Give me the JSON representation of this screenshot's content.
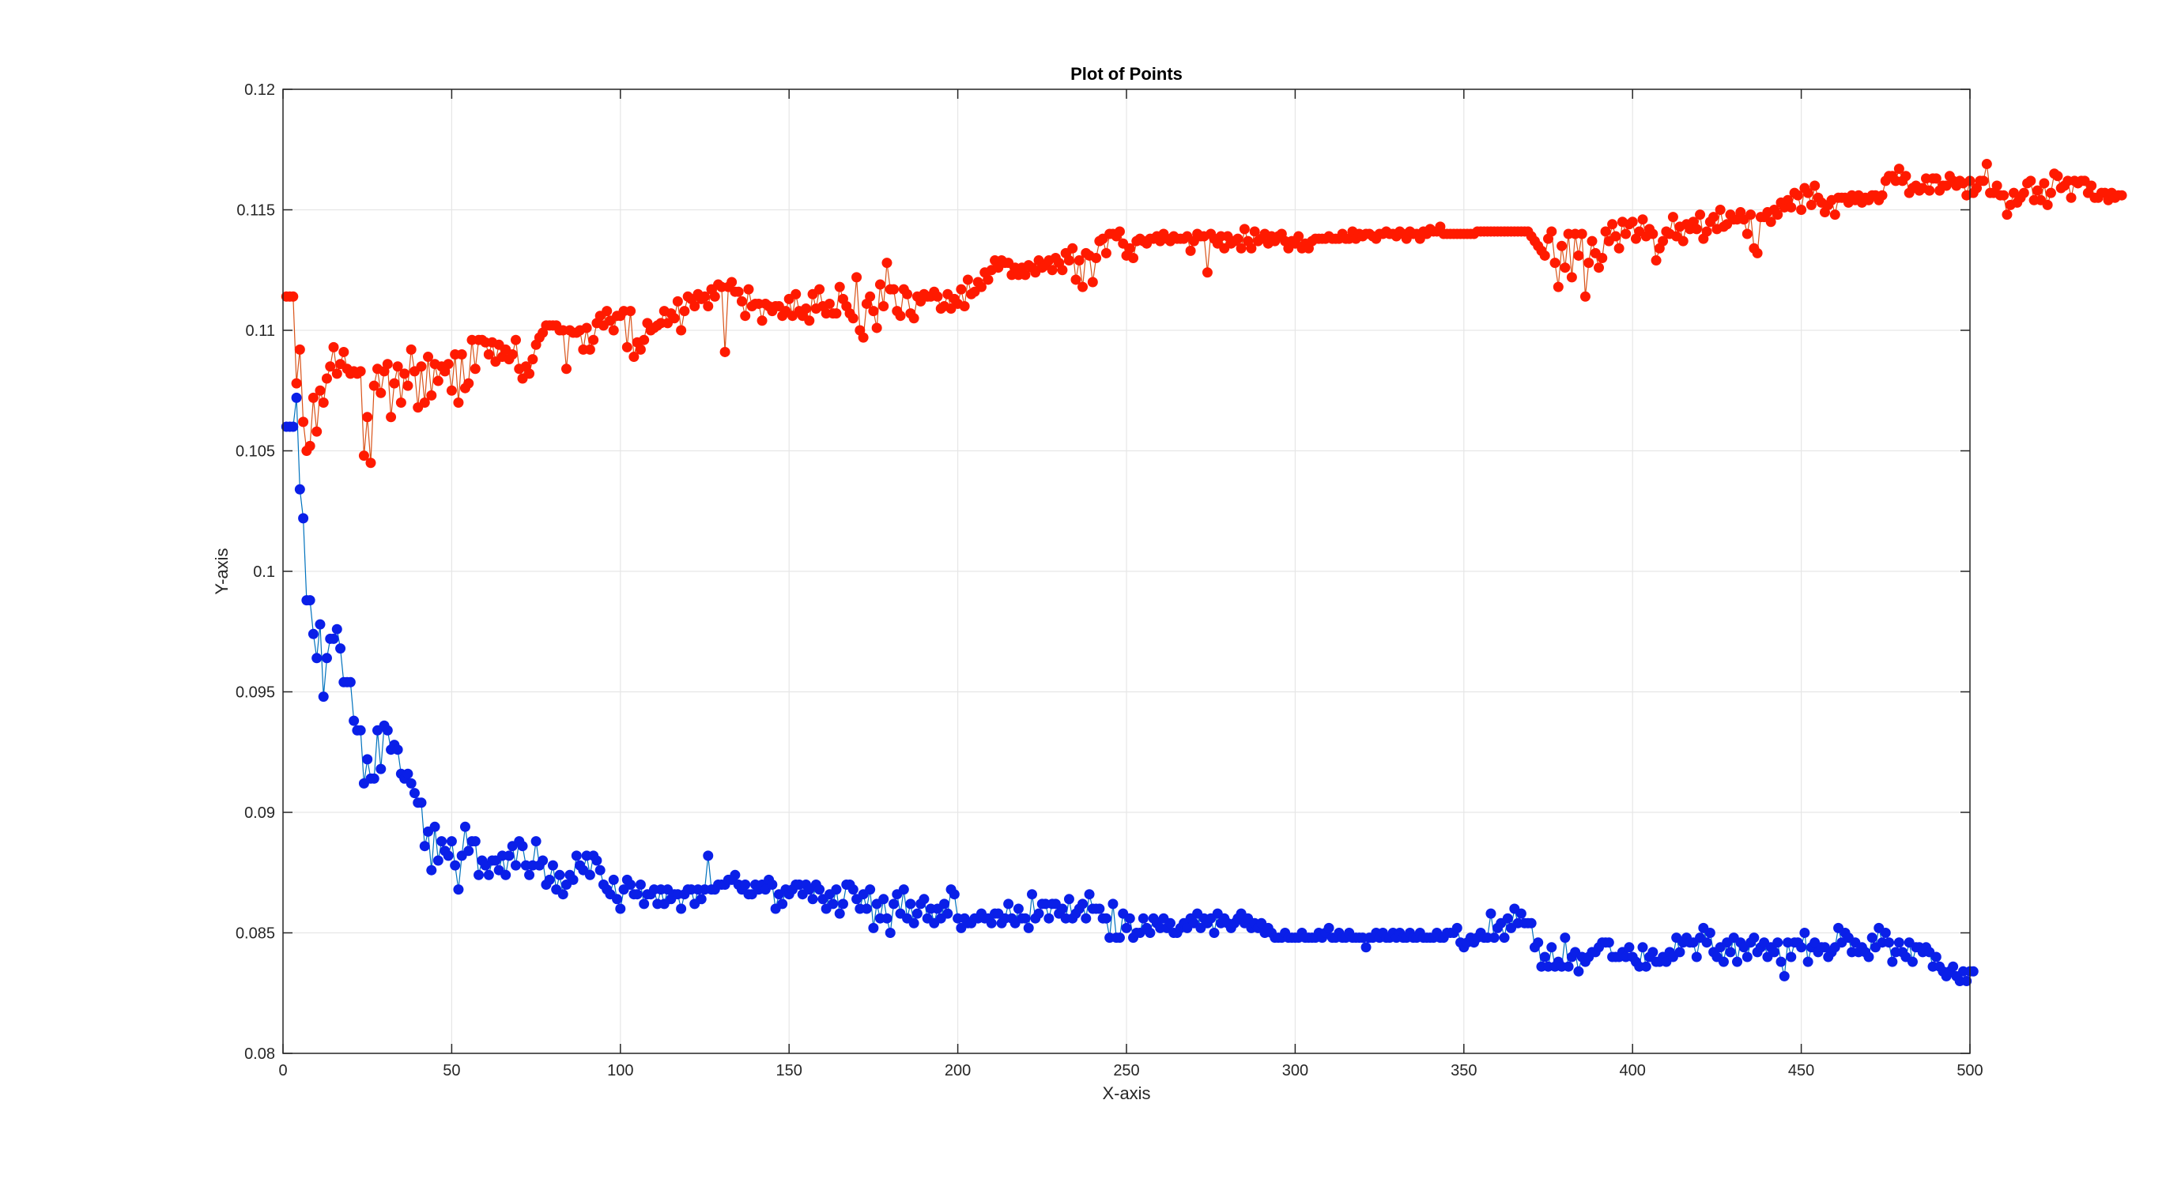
{
  "chart_data": {
    "type": "line",
    "title": "Plot of Points",
    "xlabel": "X-axis",
    "ylabel": "Y-axis",
    "xlim": [
      0,
      500
    ],
    "ylim": [
      0.08,
      0.12
    ],
    "x_ticks": [
      0,
      50,
      100,
      150,
      200,
      250,
      300,
      350,
      400,
      450,
      500
    ],
    "x_tick_labels": [
      "0",
      "50",
      "100",
      "150",
      "200",
      "250",
      "300",
      "350",
      "400",
      "450",
      "500"
    ],
    "y_ticks": [
      0.08,
      0.085,
      0.09,
      0.095,
      0.1,
      0.105,
      0.11,
      0.115,
      0.12
    ],
    "y_tick_labels": [
      "0.08",
      "0.085",
      "0.09",
      "0.095",
      "0.1",
      "0.105",
      "0.11",
      "0.115",
      "0.12"
    ],
    "grid": true,
    "marker": "filled-circle",
    "series": [
      {
        "color": "#ff1a00",
        "line_color": "#d95319",
        "x_start": 1,
        "x_step": 1,
        "values": [
          0.1114,
          0.1114,
          0.1114,
          0.1078,
          0.1092,
          0.1062,
          0.105,
          0.1052,
          0.1072,
          0.1058,
          0.1075,
          0.107,
          0.108,
          0.1085,
          0.1093,
          0.1082,
          0.1086,
          0.1091,
          0.1084,
          0.1082,
          0.1083,
          0.1082,
          0.1083,
          0.1048,
          0.1064,
          0.1045,
          0.1077,
          0.1084,
          0.1074,
          0.1083,
          0.1086,
          0.1064,
          0.1078,
          0.1085,
          0.107,
          0.1082,
          0.1077,
          0.1092,
          0.1083,
          0.1068,
          0.1085,
          0.107,
          0.1089,
          0.1073,
          0.1086,
          0.1079,
          0.1085,
          0.1083,
          0.1086,
          0.1075,
          0.109,
          0.107,
          0.109,
          0.1076,
          0.1078,
          0.1096,
          0.1084,
          0.1096,
          0.1096,
          0.1095,
          0.109,
          0.1095,
          0.1087,
          0.1094,
          0.1089,
          0.1092,
          0.1088,
          0.109,
          0.1096,
          0.1084,
          0.108,
          0.1085,
          0.1082,
          0.1088,
          0.1094,
          0.1097,
          0.1099,
          0.1102,
          0.1102,
          0.1102,
          0.1102,
          0.11,
          0.11,
          0.1084,
          0.11,
          0.1099,
          0.1099,
          0.11,
          0.1092,
          0.1101,
          0.1092,
          0.1096,
          0.1103,
          0.1106,
          0.1102,
          0.1108,
          0.1104,
          0.11,
          0.1106,
          0.1106,
          0.1108,
          0.1093,
          0.1108,
          0.1089,
          0.1095,
          0.1092,
          0.1096,
          0.1103,
          0.11,
          0.1101,
          0.1102,
          0.1103,
          0.1108,
          0.1103,
          0.1107,
          0.1105,
          0.1112,
          0.11,
          0.1108,
          0.1114,
          0.1113,
          0.111,
          0.1115,
          0.1113,
          0.1114,
          0.111,
          0.1117,
          0.1114,
          0.1119,
          0.1118,
          0.1091,
          0.1118,
          0.112,
          0.1116,
          0.1116,
          0.1112,
          0.1106,
          0.1117,
          0.111,
          0.1111,
          0.1111,
          0.1104,
          0.1111,
          0.111,
          0.1108,
          0.111,
          0.111,
          0.1106,
          0.1108,
          0.1113,
          0.1106,
          0.1115,
          0.1108,
          0.1106,
          0.1109,
          0.1104,
          0.1115,
          0.1109,
          0.1117,
          0.111,
          0.1107,
          0.1111,
          0.1107,
          0.1107,
          0.1118,
          0.1113,
          0.111,
          0.1107,
          0.1105,
          0.1122,
          0.11,
          0.1097,
          0.1111,
          0.1114,
          0.1108,
          0.1101,
          0.1119,
          0.111,
          0.1128,
          0.1117,
          0.1117,
          0.1108,
          0.1106,
          0.1117,
          0.1115,
          0.1107,
          0.1105,
          0.1114,
          0.1112,
          0.1115,
          0.1114,
          0.1114,
          0.1116,
          0.1114,
          0.1109,
          0.111,
          0.1115,
          0.1109,
          0.1113,
          0.1111,
          0.1117,
          0.111,
          0.1121,
          0.1115,
          0.1116,
          0.112,
          0.1118,
          0.1124,
          0.1121,
          0.1125,
          0.1129,
          0.1126,
          0.1129,
          0.1128,
          0.1128,
          0.1123,
          0.1126,
          0.1123,
          0.1126,
          0.1123,
          0.1127,
          0.1126,
          0.1124,
          0.1129,
          0.1126,
          0.1127,
          0.1129,
          0.1125,
          0.113,
          0.1128,
          0.1125,
          0.1132,
          0.1129,
          0.1134,
          0.1121,
          0.1129,
          0.1118,
          0.1132,
          0.1131,
          0.112,
          0.113,
          0.1137,
          0.1138,
          0.1132,
          0.114,
          0.114,
          0.1139,
          0.1141,
          0.1136,
          0.1131,
          0.1134,
          0.113,
          0.1137,
          0.1138,
          0.1137,
          0.1136,
          0.1138,
          0.1138,
          0.1139,
          0.1137,
          0.114,
          0.1138,
          0.1137,
          0.1139,
          0.1138,
          0.1138,
          0.1138,
          0.1139,
          0.1133,
          0.1137,
          0.114,
          0.1139,
          0.1139,
          0.1124,
          0.114,
          0.1138,
          0.1136,
          0.1139,
          0.1134,
          0.1139,
          0.1136,
          0.1137,
          0.1138,
          0.1134,
          0.1142,
          0.1137,
          0.1134,
          0.1141,
          0.1137,
          0.1138,
          0.114,
          0.1136,
          0.1139,
          0.1137,
          0.1139,
          0.114,
          0.1137,
          0.1134,
          0.1137,
          0.1136,
          0.1139,
          0.1134,
          0.1136,
          0.1134,
          0.1137,
          0.1138,
          0.1138,
          0.1138,
          0.1138,
          0.1139,
          0.1138,
          0.1138,
          0.1138,
          0.114,
          0.1138,
          0.1138,
          0.1141,
          0.1138,
          0.114,
          0.1139,
          0.114,
          0.114,
          0.1139,
          0.1138,
          0.114,
          0.114,
          0.1141,
          0.114,
          0.114,
          0.1139,
          0.1141,
          0.114,
          0.1138,
          0.1141,
          0.114,
          0.114,
          0.1138,
          0.1141,
          0.114,
          0.1142,
          0.1141,
          0.1141,
          0.1143,
          0.114,
          0.114,
          0.114,
          0.114,
          0.114,
          0.114,
          0.114,
          0.114,
          0.114,
          0.114,
          0.1141,
          0.1141,
          0.1141,
          0.1141,
          0.1141,
          0.1141,
          0.1141,
          0.1141,
          0.1141,
          0.1141,
          0.1141,
          0.1141,
          0.1141,
          0.1141,
          0.1141,
          0.1141,
          0.1139,
          0.1137,
          0.1135,
          0.1133,
          0.1131,
          0.1138,
          0.1141,
          0.1128,
          0.1118,
          0.1135,
          0.1126,
          0.114,
          0.1122,
          0.114,
          0.1131,
          0.114,
          0.1114,
          0.1128,
          0.1137,
          0.1132,
          0.1126,
          0.113,
          0.1141,
          0.1137,
          0.1144,
          0.1139,
          0.1134,
          0.1145,
          0.114,
          0.1144,
          0.1145,
          0.1138,
          0.1141,
          0.1146,
          0.1139,
          0.1142,
          0.114,
          0.1129,
          0.1134,
          0.1137,
          0.1141,
          0.114,
          0.1147,
          0.1139,
          0.1143,
          0.1137,
          0.1144,
          0.1142,
          0.1145,
          0.1142,
          0.1148,
          0.1138,
          0.1141,
          0.1145,
          0.1147,
          0.1142,
          0.115,
          0.1143,
          0.1144,
          0.1148,
          0.1146,
          0.1146,
          0.1149,
          0.1146,
          0.114,
          0.1148,
          0.1134,
          0.1132,
          0.1147,
          0.1147,
          0.1149,
          0.1145,
          0.115,
          0.1148,
          0.1153,
          0.1151,
          0.1154,
          0.1151,
          0.1157,
          0.1156,
          0.115,
          0.1159,
          0.1157,
          0.1152,
          0.116,
          0.1155,
          0.1153,
          0.1149,
          0.1152,
          0.1154,
          0.1148,
          0.1155,
          0.1155,
          0.1155,
          0.1153,
          0.1156,
          0.1154,
          0.1156,
          0.1153,
          0.1155,
          0.1154,
          0.1156,
          0.1156,
          0.1154,
          0.1156,
          0.1162,
          0.1164,
          0.1164,
          0.1162,
          0.1167,
          0.1162,
          0.1164,
          0.1157,
          0.1159,
          0.116,
          0.1158,
          0.1159,
          0.1163,
          0.1158,
          0.1163,
          0.1163,
          0.1158,
          0.116,
          0.116,
          0.1164,
          0.1162,
          0.116,
          0.1162,
          0.1161,
          0.1156,
          0.1162,
          0.1157,
          0.1159,
          0.1162,
          0.1162,
          0.1169,
          0.1157,
          0.1157,
          0.116,
          0.1156,
          0.1156,
          0.1148,
          0.1152,
          0.1157,
          0.1153,
          0.1155,
          0.1157,
          0.1161,
          0.1162,
          0.1154,
          0.1158,
          0.1154,
          0.1161,
          0.1152,
          0.1157,
          0.1165,
          0.1164,
          0.1159,
          0.116,
          0.1162,
          0.1155,
          0.1162,
          0.1161,
          0.1162,
          0.1162,
          0.1157,
          0.116,
          0.1155,
          0.1155,
          0.1157,
          0.1157,
          0.1154,
          0.1157,
          0.1155,
          0.1156,
          0.1156
        ]
      },
      {
        "color": "#0a1fe8",
        "line_color": "#0072bd",
        "x_start": 1,
        "x_step": 1,
        "values": [
          0.106,
          0.106,
          0.106,
          0.1072,
          0.1034,
          0.1022,
          0.0988,
          0.0988,
          0.0974,
          0.0964,
          0.0978,
          0.0948,
          0.0964,
          0.0972,
          0.0972,
          0.0976,
          0.0968,
          0.0954,
          0.0954,
          0.0954,
          0.0938,
          0.0934,
          0.0934,
          0.0912,
          0.0922,
          0.0914,
          0.0914,
          0.0934,
          0.0918,
          0.0936,
          0.0934,
          0.0926,
          0.0928,
          0.0926,
          0.0916,
          0.0914,
          0.0916,
          0.0912,
          0.0908,
          0.0904,
          0.0904,
          0.0886,
          0.0892,
          0.0876,
          0.0894,
          0.088,
          0.0888,
          0.0884,
          0.0882,
          0.0888,
          0.0878,
          0.0868,
          0.0882,
          0.0894,
          0.0884,
          0.0888,
          0.0888,
          0.0874,
          0.088,
          0.0878,
          0.0874,
          0.088,
          0.088,
          0.0876,
          0.0882,
          0.0874,
          0.0882,
          0.0886,
          0.0878,
          0.0888,
          0.0886,
          0.0878,
          0.0874,
          0.0878,
          0.0888,
          0.0878,
          0.088,
          0.087,
          0.0872,
          0.0878,
          0.0868,
          0.0874,
          0.0866,
          0.087,
          0.0874,
          0.0872,
          0.0882,
          0.0878,
          0.0876,
          0.0882,
          0.0874,
          0.0882,
          0.088,
          0.0876,
          0.087,
          0.0868,
          0.0866,
          0.0872,
          0.0864,
          0.086,
          0.0868,
          0.0872,
          0.087,
          0.0866,
          0.0866,
          0.087,
          0.0862,
          0.0866,
          0.0866,
          0.0868,
          0.0862,
          0.0868,
          0.0862,
          0.0868,
          0.0864,
          0.0866,
          0.0866,
          0.086,
          0.0866,
          0.0868,
          0.0868,
          0.0862,
          0.0868,
          0.0864,
          0.0868,
          0.0882,
          0.0868,
          0.0868,
          0.087,
          0.087,
          0.087,
          0.0872,
          0.0872,
          0.0874,
          0.087,
          0.0868,
          0.087,
          0.0866,
          0.0866,
          0.087,
          0.0868,
          0.087,
          0.0868,
          0.0872,
          0.087,
          0.086,
          0.0866,
          0.0862,
          0.0868,
          0.0866,
          0.0868,
          0.087,
          0.087,
          0.0866,
          0.087,
          0.0868,
          0.0864,
          0.087,
          0.0868,
          0.0864,
          0.086,
          0.0866,
          0.0862,
          0.0868,
          0.0858,
          0.0862,
          0.087,
          0.087,
          0.0868,
          0.0864,
          0.086,
          0.0866,
          0.086,
          0.0868,
          0.0852,
          0.0862,
          0.0856,
          0.0864,
          0.0856,
          0.085,
          0.0862,
          0.0866,
          0.0858,
          0.0868,
          0.0856,
          0.0862,
          0.0854,
          0.0858,
          0.0862,
          0.0864,
          0.0856,
          0.086,
          0.0854,
          0.086,
          0.0856,
          0.0862,
          0.0858,
          0.0868,
          0.0866,
          0.0856,
          0.0852,
          0.0856,
          0.0854,
          0.0854,
          0.0856,
          0.0856,
          0.0858,
          0.0856,
          0.0856,
          0.0854,
          0.0858,
          0.0858,
          0.0854,
          0.0856,
          0.0862,
          0.0856,
          0.0854,
          0.086,
          0.0856,
          0.0856,
          0.0852,
          0.0866,
          0.0856,
          0.0858,
          0.0862,
          0.0862,
          0.0856,
          0.0862,
          0.0862,
          0.0858,
          0.086,
          0.0856,
          0.0864,
          0.0856,
          0.0858,
          0.086,
          0.0862,
          0.0856,
          0.0866,
          0.086,
          0.086,
          0.086,
          0.0856,
          0.0856,
          0.0848,
          0.0862,
          0.0848,
          0.0848,
          0.0858,
          0.0852,
          0.0856,
          0.0848,
          0.085,
          0.085,
          0.0856,
          0.0852,
          0.085,
          0.0856,
          0.0854,
          0.0852,
          0.0856,
          0.0852,
          0.0854,
          0.085,
          0.085,
          0.0852,
          0.0854,
          0.0852,
          0.0856,
          0.0854,
          0.0858,
          0.0852,
          0.0856,
          0.0854,
          0.0856,
          0.085,
          0.0858,
          0.0854,
          0.0856,
          0.0854,
          0.0852,
          0.0854,
          0.0856,
          0.0858,
          0.0854,
          0.0856,
          0.0852,
          0.0854,
          0.0852,
          0.0854,
          0.085,
          0.0852,
          0.085,
          0.0848,
          0.0848,
          0.0848,
          0.085,
          0.0848,
          0.0848,
          0.0848,
          0.0848,
          0.085,
          0.0848,
          0.0848,
          0.0848,
          0.0848,
          0.085,
          0.0848,
          0.085,
          0.0852,
          0.0848,
          0.0848,
          0.085,
          0.0848,
          0.0848,
          0.085,
          0.0848,
          0.0848,
          0.0848,
          0.0848,
          0.0844,
          0.0848,
          0.0848,
          0.085,
          0.0848,
          0.085,
          0.0848,
          0.0848,
          0.085,
          0.0848,
          0.085,
          0.0848,
          0.0848,
          0.085,
          0.0848,
          0.0848,
          0.085,
          0.0848,
          0.0848,
          0.0848,
          0.0848,
          0.085,
          0.0848,
          0.0848,
          0.085,
          0.085,
          0.085,
          0.0852,
          0.0846,
          0.0844,
          0.0846,
          0.0848,
          0.0846,
          0.0848,
          0.085,
          0.0848,
          0.0848,
          0.0858,
          0.0848,
          0.0852,
          0.0854,
          0.0848,
          0.0856,
          0.0852,
          0.086,
          0.0854,
          0.0858,
          0.0854,
          0.0854,
          0.0854,
          0.0844,
          0.0846,
          0.0836,
          0.084,
          0.0836,
          0.0844,
          0.0836,
          0.0838,
          0.0836,
          0.0848,
          0.0836,
          0.084,
          0.0842,
          0.0834,
          0.084,
          0.0838,
          0.084,
          0.0842,
          0.0842,
          0.0844,
          0.0846,
          0.0846,
          0.0846,
          0.084,
          0.084,
          0.084,
          0.0842,
          0.084,
          0.0844,
          0.084,
          0.0838,
          0.0836,
          0.0844,
          0.0836,
          0.084,
          0.0842,
          0.0838,
          0.0838,
          0.084,
          0.0838,
          0.0842,
          0.084,
          0.0848,
          0.0842,
          0.0846,
          0.0848,
          0.0846,
          0.0846,
          0.084,
          0.0848,
          0.0852,
          0.0846,
          0.085,
          0.0842,
          0.084,
          0.0844,
          0.0838,
          0.0846,
          0.0842,
          0.0848,
          0.0838,
          0.0846,
          0.0844,
          0.084,
          0.0846,
          0.0848,
          0.0842,
          0.0844,
          0.0846,
          0.084,
          0.0844,
          0.0842,
          0.0846,
          0.0838,
          0.0832,
          0.0846,
          0.084,
          0.0846,
          0.0846,
          0.0844,
          0.085,
          0.0838,
          0.0844,
          0.0846,
          0.0842,
          0.0844,
          0.0844,
          0.084,
          0.0842,
          0.0844,
          0.0852,
          0.0846,
          0.085,
          0.0848,
          0.0842,
          0.0846,
          0.0842,
          0.0844,
          0.0842,
          0.084,
          0.0848,
          0.0844,
          0.0852,
          0.0846,
          0.085,
          0.0846,
          0.0838,
          0.0842,
          0.0846,
          0.0842,
          0.084,
          0.0846,
          0.0838,
          0.0844,
          0.0844,
          0.0842,
          0.0844,
          0.0842,
          0.0836,
          0.084,
          0.0836,
          0.0834,
          0.0832,
          0.0834,
          0.0836,
          0.0832,
          0.083,
          0.0834,
          0.083,
          0.0834,
          0.0834
        ]
      }
    ]
  }
}
